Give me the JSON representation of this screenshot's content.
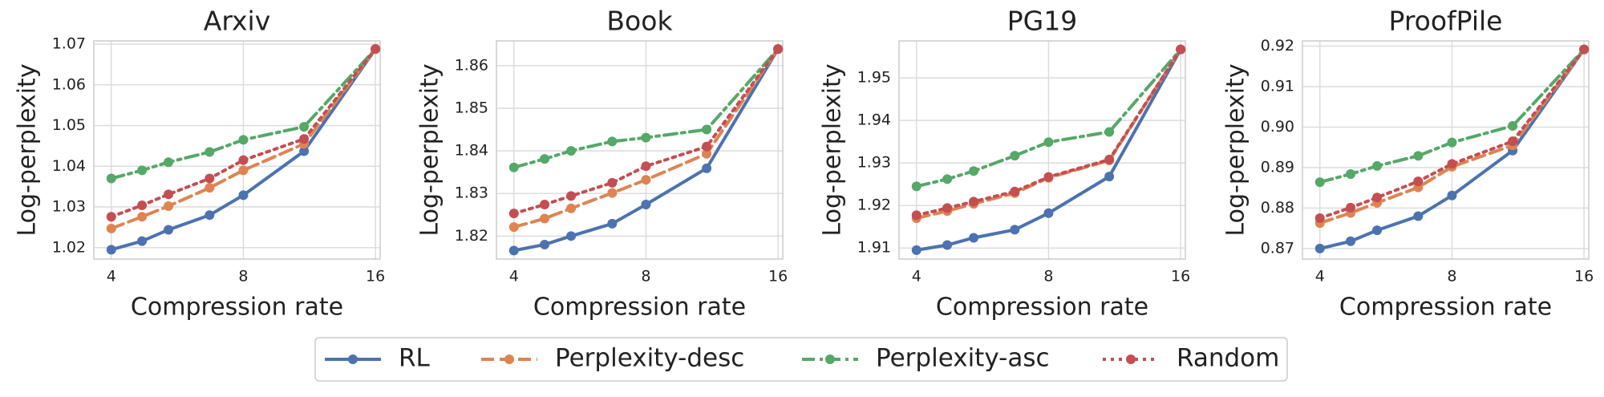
{
  "chart_data": [
    {
      "type": "line",
      "title": "Arxiv",
      "xlabel": "Compression rate",
      "ylabel": "Log-perplexity",
      "xscale": "log2",
      "grid": true,
      "x": [
        4,
        4.7,
        5.4,
        6.7,
        8,
        11,
        16
      ],
      "xlim": [
        3.65,
        16.4
      ],
      "xticks": [
        4,
        8,
        16
      ],
      "ylim": [
        1.0172,
        1.0708
      ],
      "yticks": [
        1.02,
        1.03,
        1.04,
        1.05,
        1.06,
        1.07
      ],
      "series": [
        {
          "name": "RL",
          "color": "#4c72b0",
          "dash": "solid",
          "values": [
            1.0195,
            1.0216,
            1.0244,
            1.028,
            1.0329,
            1.0437,
            1.0688
          ]
        },
        {
          "name": "Perplexity-desc",
          "color": "#dd8452",
          "dash": "dashed",
          "values": [
            1.0247,
            1.0276,
            1.0302,
            1.0347,
            1.039,
            1.0455,
            1.0688
          ]
        },
        {
          "name": "Perplexity-asc",
          "color": "#55a868",
          "dash": "dashdot",
          "values": [
            1.037,
            1.039,
            1.041,
            1.0435,
            1.0465,
            1.0497,
            1.0688
          ]
        },
        {
          "name": "Random",
          "color": "#c44e52",
          "dash": "dotted",
          "values": [
            1.0276,
            1.0304,
            1.0331,
            1.037,
            1.0415,
            1.0467,
            1.0688
          ]
        }
      ]
    },
    {
      "type": "line",
      "title": "Book",
      "xlabel": "Compression rate",
      "ylabel": "Log-perplexity",
      "xscale": "log2",
      "grid": true,
      "x": [
        4,
        4.7,
        5.4,
        6.7,
        8,
        11,
        16
      ],
      "xlim": [
        3.65,
        16.4
      ],
      "xticks": [
        4,
        8,
        16
      ],
      "ylim": [
        1.8146,
        1.8658
      ],
      "yticks": [
        1.82,
        1.83,
        1.84,
        1.85,
        1.86
      ],
      "series": [
        {
          "name": "RL",
          "color": "#4c72b0",
          "dash": "solid",
          "values": [
            1.8166,
            1.818,
            1.82,
            1.8229,
            1.8274,
            1.8359,
            1.8639
          ]
        },
        {
          "name": "Perplexity-desc",
          "color": "#dd8452",
          "dash": "dashed",
          "values": [
            1.8221,
            1.8241,
            1.8265,
            1.8301,
            1.8332,
            1.8393,
            1.8639
          ]
        },
        {
          "name": "Perplexity-asc",
          "color": "#55a868",
          "dash": "dashdot",
          "values": [
            1.8361,
            1.8381,
            1.84,
            1.8422,
            1.8431,
            1.845,
            1.8639
          ]
        },
        {
          "name": "Random",
          "color": "#c44e52",
          "dash": "dotted",
          "values": [
            1.8253,
            1.8274,
            1.8294,
            1.8325,
            1.8364,
            1.841,
            1.8639
          ]
        }
      ]
    },
    {
      "type": "line",
      "title": "PG19",
      "xlabel": "Compression rate",
      "ylabel": "Log-perplexity",
      "xscale": "log2",
      "grid": true,
      "x": [
        4,
        4.7,
        5.4,
        6.7,
        8,
        11,
        16
      ],
      "xlim": [
        3.65,
        16.4
      ],
      "xticks": [
        4,
        8,
        16
      ],
      "ylim": [
        1.9074,
        1.9587
      ],
      "yticks": [
        1.91,
        1.92,
        1.93,
        1.94,
        1.95
      ],
      "series": [
        {
          "name": "RL",
          "color": "#4c72b0",
          "dash": "solid",
          "values": [
            1.9095,
            1.9107,
            1.9124,
            1.9143,
            1.9182,
            1.9268,
            1.9567
          ]
        },
        {
          "name": "Perplexity-desc",
          "color": "#dd8452",
          "dash": "dashed",
          "values": [
            1.917,
            1.9187,
            1.9204,
            1.9229,
            1.9265,
            1.9306,
            1.9567
          ]
        },
        {
          "name": "Perplexity-asc",
          "color": "#55a868",
          "dash": "dashdot",
          "values": [
            1.9245,
            1.9262,
            1.9281,
            1.9317,
            1.9349,
            1.9373,
            1.9567
          ]
        },
        {
          "name": "Random",
          "color": "#c44e52",
          "dash": "dotted",
          "values": [
            1.9177,
            1.9194,
            1.9209,
            1.9233,
            1.9267,
            1.9308,
            1.9567
          ]
        }
      ]
    },
    {
      "type": "line",
      "title": "ProofPile",
      "xlabel": "Compression rate",
      "ylabel": "Log-perplexity",
      "xscale": "log2",
      "grid": true,
      "x": [
        4,
        4.7,
        5.4,
        6.7,
        8,
        11,
        16
      ],
      "xlim": [
        3.65,
        16.4
      ],
      "xticks": [
        4,
        8,
        16
      ],
      "ylim": [
        0.8674,
        0.9213
      ],
      "yticks": [
        0.87,
        0.88,
        0.89,
        {
          "value": 0.9,
          "label": "0.90"
        },
        0.91,
        0.92
      ],
      "series": [
        {
          "name": "RL",
          "color": "#4c72b0",
          "dash": "solid",
          "values": [
            0.87,
            0.8718,
            0.8745,
            0.878,
            0.8831,
            0.8942,
            0.9192
          ]
        },
        {
          "name": "Perplexity-desc",
          "color": "#dd8452",
          "dash": "dashed",
          "values": [
            0.8763,
            0.8788,
            0.8813,
            0.8851,
            0.8902,
            0.8955,
            0.9192
          ]
        },
        {
          "name": "Perplexity-asc",
          "color": "#55a868",
          "dash": "dashdot",
          "values": [
            0.8864,
            0.8884,
            0.8904,
            0.8929,
            0.8962,
            0.9003,
            0.9192
          ]
        },
        {
          "name": "Random",
          "color": "#c44e52",
          "dash": "dotted",
          "values": [
            0.8775,
            0.8801,
            0.8826,
            0.8866,
            0.8909,
            0.8965,
            0.9192
          ]
        }
      ]
    }
  ]
}
